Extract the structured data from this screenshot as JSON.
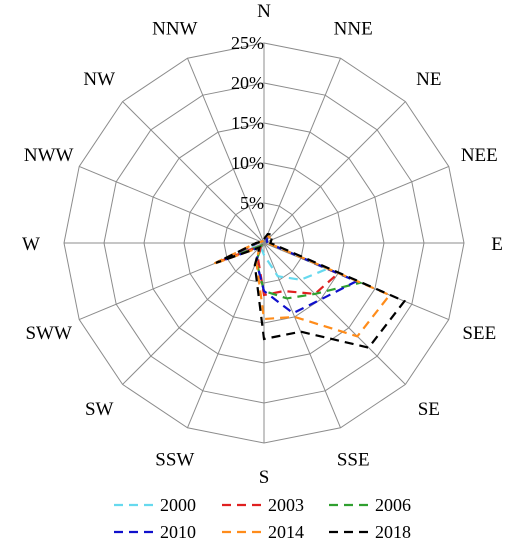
{
  "chart_data": {
    "type": "radar",
    "directions": [
      "N",
      "NNE",
      "NE",
      "NEE",
      "E",
      "SEE",
      "SE",
      "SSE",
      "S",
      "SSW",
      "SW",
      "SWW",
      "W",
      "NWW",
      "NW",
      "NNW"
    ],
    "rlim": [
      0,
      25
    ],
    "rticks": [
      0,
      5,
      10,
      15,
      20,
      25
    ],
    "rtick_labels": [
      "",
      "5%",
      "10%",
      "15%",
      "20%",
      "25%"
    ],
    "legend_position": "bottom",
    "grid": true,
    "series": [
      {
        "name": "2000",
        "color": "#66d9ee",
        "values": [
          0.5,
          0.8,
          0.5,
          0.4,
          0.5,
          8.5,
          6.5,
          4.5,
          1.5,
          0.8,
          0.5,
          6.0,
          0.7,
          0.4,
          0.3,
          0.3
        ]
      },
      {
        "name": "2003",
        "color": "#e02020",
        "values": [
          0.5,
          0.8,
          0.5,
          0.4,
          0.5,
          10.0,
          9.0,
          6.5,
          6.5,
          2.0,
          0.5,
          6.0,
          0.8,
          0.4,
          0.3,
          0.3
        ]
      },
      {
        "name": "2006",
        "color": "#30a030",
        "values": [
          0.5,
          0.8,
          0.5,
          0.4,
          0.5,
          13.0,
          9.0,
          7.5,
          6.0,
          2.5,
          0.5,
          6.5,
          0.9,
          0.4,
          0.3,
          0.3
        ]
      },
      {
        "name": "2010",
        "color": "#1010cc",
        "values": [
          0.5,
          0.8,
          0.5,
          0.4,
          0.5,
          12.5,
          10.0,
          9.5,
          6.0,
          2.5,
          0.8,
          6.5,
          0.9,
          0.4,
          0.3,
          0.3
        ]
      },
      {
        "name": "2014",
        "color": "#ff8c1a",
        "values": [
          0.5,
          1.0,
          1.0,
          0.8,
          0.5,
          17.0,
          16.5,
          10.0,
          9.5,
          2.5,
          0.8,
          7.0,
          1.0,
          0.4,
          0.3,
          0.3
        ]
      },
      {
        "name": "2018",
        "color": "#000000",
        "values": [
          0.5,
          1.2,
          1.5,
          1.0,
          0.8,
          19.0,
          18.5,
          12.0,
          12.0,
          3.0,
          0.8,
          6.5,
          1.0,
          0.4,
          0.3,
          0.3
        ]
      }
    ]
  }
}
